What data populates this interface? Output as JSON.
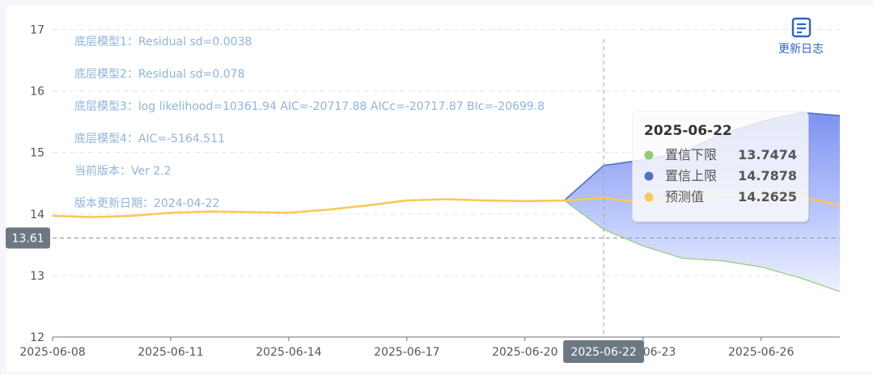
{
  "chart_data": {
    "type": "area",
    "x": [
      "2025-06-08",
      "2025-06-09",
      "2025-06-10",
      "2025-06-11",
      "2025-06-12",
      "2025-06-13",
      "2025-06-14",
      "2025-06-15",
      "2025-06-16",
      "2025-06-17",
      "2025-06-18",
      "2025-06-19",
      "2025-06-20",
      "2025-06-21",
      "2025-06-22",
      "2025-06-23",
      "2025-06-24",
      "2025-06-25",
      "2025-06-26",
      "2025-06-27",
      "2025-06-28"
    ],
    "x_tick_labels": [
      "2025-06-08",
      "2025-06-11",
      "2025-06-14",
      "2025-06-17",
      "2025-06-20",
      "2025-06-23",
      "2025-06-26"
    ],
    "y_ticks": [
      12,
      13,
      14,
      15,
      16,
      17
    ],
    "ylim": [
      12,
      17.4
    ],
    "series": [
      {
        "name": "置信下限",
        "color": "#91cc75",
        "values": [
          null,
          null,
          null,
          null,
          null,
          null,
          null,
          null,
          null,
          null,
          null,
          null,
          null,
          14.22,
          13.7474,
          13.48,
          13.28,
          13.24,
          13.14,
          12.96,
          12.74
        ]
      },
      {
        "name": "置信上限",
        "color": "#5470c6",
        "values": [
          null,
          null,
          null,
          null,
          null,
          null,
          null,
          null,
          null,
          null,
          null,
          null,
          null,
          14.22,
          14.7878,
          14.88,
          15.0,
          15.3,
          15.5,
          15.65,
          15.6
        ]
      },
      {
        "name": "预测值",
        "color": "#fac858",
        "values": [
          13.97,
          13.95,
          13.97,
          14.02,
          14.04,
          14.03,
          14.02,
          14.07,
          14.14,
          14.22,
          14.24,
          14.22,
          14.21,
          14.22,
          14.2625,
          14.18,
          14.28,
          14.32,
          14.3,
          14.28,
          14.14
        ]
      }
    ],
    "annotations": [
      "底层模型1：Residual sd=0.0038",
      "底层模型2：Residual sd=0.078",
      "底层模型3：log likelihood=10361.94 AIC=-20717.88 AICc=-20717.87 BIc=-20699.8",
      "底层模型4：AIC=-5164.511",
      "当前版本：Ver 2.2",
      "版本更新日期：2024-04-22"
    ],
    "crosshair": {
      "x": "2025-06-22",
      "y": 13.61,
      "x_label": "2025-06-22",
      "y_label": "13.61"
    },
    "tooltip": {
      "title": "2025-06-22",
      "rows": [
        {
          "label": "置信下限",
          "value": "13.7474",
          "color": "#91cc75"
        },
        {
          "label": "置信上限",
          "value": "14.7878",
          "color": "#5470c6"
        },
        {
          "label": "预测值",
          "value": "14.2625",
          "color": "#fac858"
        }
      ]
    },
    "grid": true,
    "legend": "none"
  },
  "toolbar": {
    "changelog_label": "更新日志",
    "changelog_icon": "document-list-icon"
  }
}
